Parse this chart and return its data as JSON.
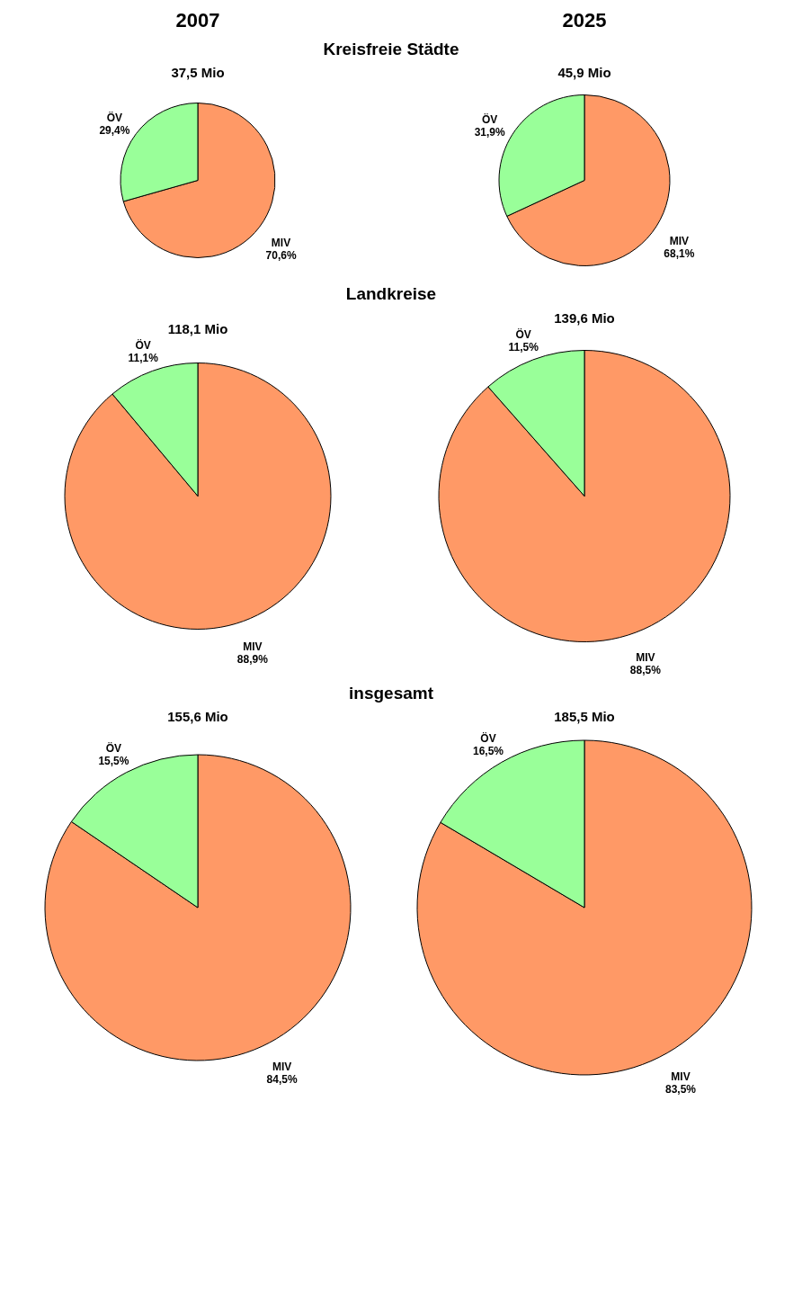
{
  "chart_data": [
    {
      "type": "pie",
      "title": "37,5 Mio",
      "annotations": [
        "2007",
        "Kreisfreie Städte"
      ],
      "categories": [
        "MIV",
        "ÖV"
      ],
      "values": [
        70.6,
        29.4
      ],
      "value_labels": [
        "70,6%",
        "29,4%"
      ],
      "colors": [
        "#ff9966",
        "#99ff99"
      ]
    },
    {
      "type": "pie",
      "title": "45,9 Mio",
      "annotations": [
        "2025"
      ],
      "categories": [
        "MIV",
        "ÖV"
      ],
      "values": [
        68.1,
        31.9
      ],
      "value_labels": [
        "68,1%",
        "31,9%"
      ],
      "colors": [
        "#ff9966",
        "#99ff99"
      ]
    },
    {
      "type": "pie",
      "title": "118,1 Mio",
      "annotations": [
        "Landkreise"
      ],
      "categories": [
        "MIV",
        "ÖV"
      ],
      "values": [
        88.9,
        11.1
      ],
      "value_labels": [
        "88,9%",
        "11,1%"
      ],
      "colors": [
        "#ff9966",
        "#99ff99"
      ]
    },
    {
      "type": "pie",
      "title": "139,6 Mio",
      "categories": [
        "MIV",
        "ÖV"
      ],
      "values": [
        88.5,
        11.5
      ],
      "value_labels": [
        "88,5%",
        "11,5%"
      ],
      "colors": [
        "#ff9966",
        "#99ff99"
      ]
    },
    {
      "type": "pie",
      "title": "155,6 Mio",
      "annotations": [
        "insgesamt"
      ],
      "categories": [
        "MIV",
        "ÖV"
      ],
      "values": [
        84.5,
        15.5
      ],
      "value_labels": [
        "84,5%",
        "15,5%"
      ],
      "colors": [
        "#ff9966",
        "#99ff99"
      ]
    },
    {
      "type": "pie",
      "title": "185,5 Mio",
      "categories": [
        "MIV",
        "ÖV"
      ],
      "values": [
        83.5,
        16.5
      ],
      "value_labels": [
        "83,5%",
        "16,5%"
      ],
      "colors": [
        "#ff9966",
        "#99ff99"
      ]
    }
  ]
}
